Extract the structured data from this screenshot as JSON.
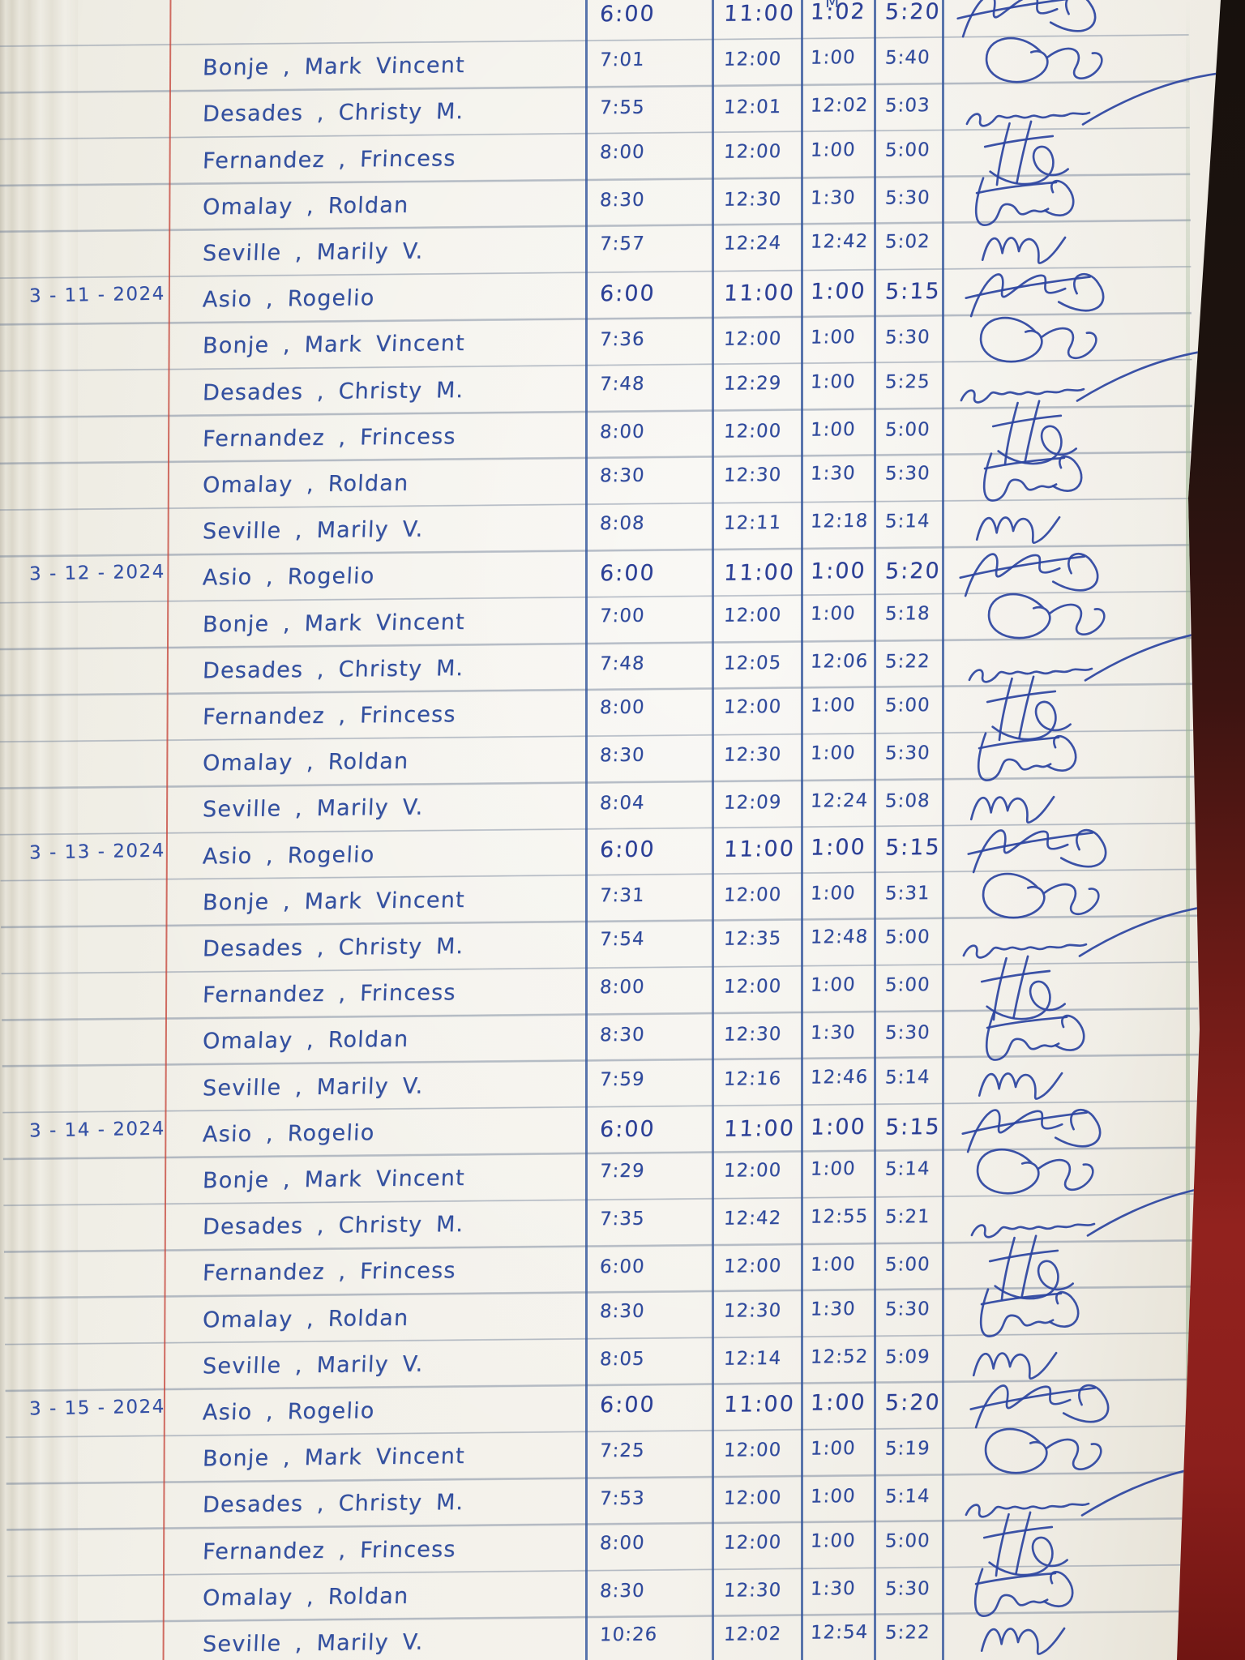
{
  "page": {
    "kind": "handwritten attendance logbook page (photo)",
    "header_remnant": "M",
    "colors": {
      "ink": "#33509f",
      "paper": "#f3f1ea",
      "rule_line": "#68789 2",
      "margin_line": "#c74a3e",
      "table_line": "#36589e",
      "book_cover": "#92221e"
    }
  },
  "blocks": [
    {
      "date": "",
      "rows": [
        {
          "name": "",
          "times": [
            "6:00",
            "11:00",
            "1:02",
            "5:20"
          ],
          "sig": "asio"
        },
        {
          "name": "Bonje , Mark Vincent",
          "times": [
            "7:01",
            "12:00",
            "1:00",
            "5:40"
          ],
          "sig": "bonje"
        },
        {
          "name": "Desades , Christy M.",
          "times": [
            "7:55",
            "12:01",
            "12:02",
            "5:03"
          ],
          "sig": "desades"
        },
        {
          "name": "Fernandez , Frincess",
          "times": [
            "8:00",
            "12:00",
            "1:00",
            "5:00"
          ],
          "sig": "fernandez"
        },
        {
          "name": "Omalay , Roldan",
          "times": [
            "8:30",
            "12:30",
            "1:30",
            "5:30"
          ],
          "sig": "omalay"
        },
        {
          "name": "Seville , Marily V.",
          "times": [
            "7:57",
            "12:24",
            "12:42",
            "5:02"
          ],
          "sig": "seville"
        }
      ]
    },
    {
      "date": "3 - 11 - 2024",
      "rows": [
        {
          "name": "Asio , Rogelio",
          "times": [
            "6:00",
            "11:00",
            "1:00",
            "5:15"
          ],
          "sig": "asio"
        },
        {
          "name": "Bonje , Mark Vincent",
          "times": [
            "7:36",
            "12:00",
            "1:00",
            "5:30"
          ],
          "sig": "bonje"
        },
        {
          "name": "Desades , Christy M.",
          "times": [
            "7:48",
            "12:29",
            "1:00",
            "5:25"
          ],
          "sig": "desades"
        },
        {
          "name": "Fernandez , Frincess",
          "times": [
            "8:00",
            "12:00",
            "1:00",
            "5:00"
          ],
          "sig": "fernandez"
        },
        {
          "name": "Omalay , Roldan",
          "times": [
            "8:30",
            "12:30",
            "1:30",
            "5:30"
          ],
          "sig": "omalay"
        },
        {
          "name": "Seville , Marily V.",
          "times": [
            "8:08",
            "12:11",
            "12:18",
            "5:14"
          ],
          "sig": "seville"
        }
      ]
    },
    {
      "date": "3 - 12 - 2024",
      "rows": [
        {
          "name": "Asio , Rogelio",
          "times": [
            "6:00",
            "11:00",
            "1:00",
            "5:20"
          ],
          "sig": "asio"
        },
        {
          "name": "Bonje , Mark Vincent",
          "times": [
            "7:00",
            "12:00",
            "1:00",
            "5:18"
          ],
          "sig": "bonje"
        },
        {
          "name": "Desades , Christy M.",
          "times": [
            "7:48",
            "12:05",
            "12:06",
            "5:22"
          ],
          "sig": "desades"
        },
        {
          "name": "Fernandez , Frincess",
          "times": [
            "8:00",
            "12:00",
            "1:00",
            "5:00"
          ],
          "sig": "fernandez"
        },
        {
          "name": "Omalay , Roldan",
          "times": [
            "8:30",
            "12:30",
            "1:00",
            "5:30"
          ],
          "sig": "omalay"
        },
        {
          "name": "Seville , Marily V.",
          "times": [
            "8:04",
            "12:09",
            "12:24",
            "5:08"
          ],
          "sig": "seville"
        }
      ]
    },
    {
      "date": "3 - 13 - 2024",
      "rows": [
        {
          "name": "Asio , Rogelio",
          "times": [
            "6:00",
            "11:00",
            "1:00",
            "5:15"
          ],
          "sig": "asio"
        },
        {
          "name": "Bonje , Mark Vincent",
          "times": [
            "7:31",
            "12:00",
            "1:00",
            "5:31"
          ],
          "sig": "bonje"
        },
        {
          "name": "Desades , Christy M.",
          "times": [
            "7:54",
            "12:35",
            "12:48",
            "5:00"
          ],
          "sig": "desades"
        },
        {
          "name": "Fernandez , Frincess",
          "times": [
            "8:00",
            "12:00",
            "1:00",
            "5:00"
          ],
          "sig": "fernandez"
        },
        {
          "name": "Omalay , Roldan",
          "times": [
            "8:30",
            "12:30",
            "1:30",
            "5:30"
          ],
          "sig": "omalay"
        },
        {
          "name": "Seville , Marily V.",
          "times": [
            "7:59",
            "12:16",
            "12:46",
            "5:14"
          ],
          "sig": "seville"
        }
      ]
    },
    {
      "date": "3 - 14 - 2024",
      "rows": [
        {
          "name": "Asio , Rogelio",
          "times": [
            "6:00",
            "11:00",
            "1:00",
            "5:15"
          ],
          "sig": "asio"
        },
        {
          "name": "Bonje , Mark Vincent",
          "times": [
            "7:29",
            "12:00",
            "1:00",
            "5:14"
          ],
          "sig": "bonje"
        },
        {
          "name": "Desades , Christy M.",
          "times": [
            "7:35",
            "12:42",
            "12:55",
            "5:21"
          ],
          "sig": "desades"
        },
        {
          "name": "Fernandez , Frincess",
          "times": [
            "6:00",
            "12:00",
            "1:00",
            "5:00"
          ],
          "sig": "fernandez"
        },
        {
          "name": "Omalay , Roldan",
          "times": [
            "8:30",
            "12:30",
            "1:30",
            "5:30"
          ],
          "sig": "omalay"
        },
        {
          "name": "Seville , Marily V.",
          "times": [
            "8:05",
            "12:14",
            "12:52",
            "5:09"
          ],
          "sig": "seville"
        }
      ]
    },
    {
      "date": "3 - 15 - 2024",
      "rows": [
        {
          "name": "Asio , Rogelio",
          "times": [
            "6:00",
            "11:00",
            "1:00",
            "5:20"
          ],
          "sig": "asio"
        },
        {
          "name": "Bonje , Mark Vincent",
          "times": [
            "7:25",
            "12:00",
            "1:00",
            "5:19"
          ],
          "sig": "bonje"
        },
        {
          "name": "Desades , Christy M.",
          "times": [
            "7:53",
            "12:00",
            "1:00",
            "5:14"
          ],
          "sig": "desades"
        },
        {
          "name": "Fernandez , Frincess",
          "times": [
            "8:00",
            "12:00",
            "1:00",
            "5:00"
          ],
          "sig": "fernandez"
        },
        {
          "name": "Omalay , Roldan",
          "times": [
            "8:30",
            "12:30",
            "1:30",
            "5:30"
          ],
          "sig": "omalay"
        },
        {
          "name": "Seville , Marily V.",
          "times": [
            "10:26",
            "12:02",
            "12:54",
            "5:22"
          ],
          "sig": "seville"
        }
      ]
    }
  ]
}
